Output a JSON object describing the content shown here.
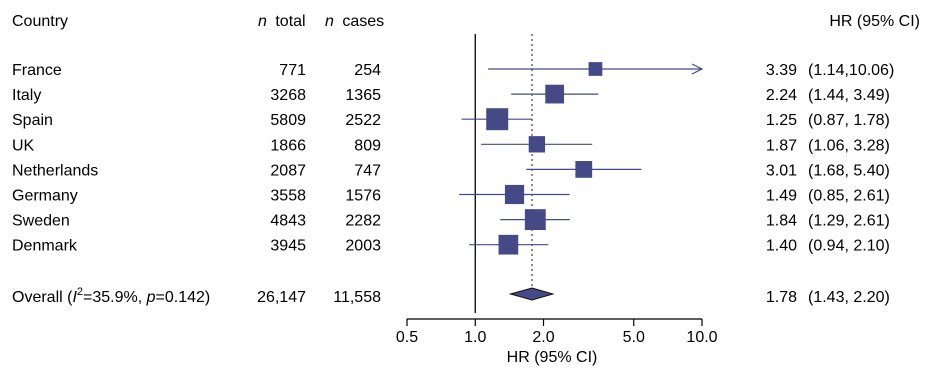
{
  "chart_data": {
    "type": "forest",
    "headers": {
      "label": "Country",
      "n_total": "total",
      "n_cases": "cases",
      "n_symbol": "n",
      "estimate": "HR (95% CI)"
    },
    "rows": [
      {
        "label": "France",
        "n_total": "771",
        "n_cases": "254",
        "hr": 3.39,
        "lo": 1.14,
        "hi": 10.06,
        "hr_text": "3.39",
        "ci_text": "(1.14,10.06)",
        "truncated_right": true
      },
      {
        "label": "Italy",
        "n_total": "3268",
        "n_cases": "1365",
        "hr": 2.24,
        "lo": 1.44,
        "hi": 3.49,
        "hr_text": "2.24",
        "ci_text": "(1.44, 3.49)"
      },
      {
        "label": "Spain",
        "n_total": "5809",
        "n_cases": "2522",
        "hr": 1.25,
        "lo": 0.87,
        "hi": 1.78,
        "hr_text": "1.25",
        "ci_text": "(0.87, 1.78)"
      },
      {
        "label": "UK",
        "n_total": "1866",
        "n_cases": "809",
        "hr": 1.87,
        "lo": 1.06,
        "hi": 3.28,
        "hr_text": "1.87",
        "ci_text": "(1.06, 3.28)"
      },
      {
        "label": "Netherlands",
        "n_total": "2087",
        "n_cases": "747",
        "hr": 3.01,
        "lo": 1.68,
        "hi": 5.4,
        "hr_text": "3.01",
        "ci_text": "(1.68, 5.40)"
      },
      {
        "label": "Germany",
        "n_total": "3558",
        "n_cases": "1576",
        "hr": 1.49,
        "lo": 0.85,
        "hi": 2.61,
        "hr_text": "1.49",
        "ci_text": "(0.85, 2.61)"
      },
      {
        "label": "Sweden",
        "n_total": "4843",
        "n_cases": "2282",
        "hr": 1.84,
        "lo": 1.29,
        "hi": 2.61,
        "hr_text": "1.84",
        "ci_text": "(1.29, 2.61)"
      },
      {
        "label": "Denmark",
        "n_total": "3945",
        "n_cases": "2003",
        "hr": 1.4,
        "lo": 0.94,
        "hi": 2.1,
        "hr_text": "1.40",
        "ci_text": "(0.94, 2.10)"
      }
    ],
    "overall": {
      "label_prefix": "Overall (",
      "i2_symbol": "I",
      "i2_sup": "2",
      "i2_value": "=35.9%, ",
      "p_symbol": "p",
      "p_value": "=0.142)",
      "n_total": "26,147",
      "n_cases": "11,558",
      "hr": 1.78,
      "lo": 1.43,
      "hi": 2.2,
      "hr_text": "1.78",
      "ci_text": "(1.43, 2.20)"
    },
    "x_axis": {
      "label": "HR (95% CI)",
      "scale": "log",
      "ticks": [
        0.5,
        1.0,
        2.0,
        5.0,
        10.0
      ],
      "tick_labels": [
        "0.5",
        "1.0",
        "2.0",
        "5.0",
        "10.0"
      ],
      "range": [
        0.5,
        10.0
      ],
      "reference_line": 1.0,
      "pooled_dotted_line": 1.78
    },
    "colors": {
      "marker": "#454a86",
      "line": "#454a86",
      "axis": "#000000"
    }
  }
}
